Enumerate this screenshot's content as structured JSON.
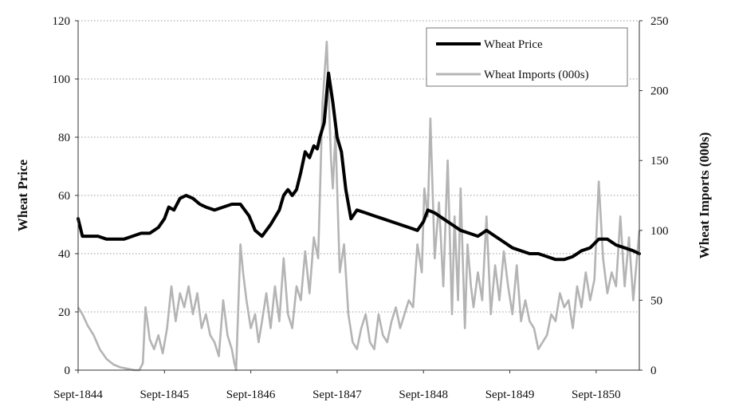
{
  "chart_data": {
    "type": "line",
    "title": "",
    "xlabel": "",
    "ylabel": "Wheat Price",
    "y2label": "Wheat Imports (000s)",
    "ylim": [
      0,
      120
    ],
    "y2lim": [
      0,
      250
    ],
    "yticks": [
      "0",
      "20",
      "40",
      "60",
      "80",
      "100",
      "120"
    ],
    "y2ticks": [
      "0",
      "50",
      "100",
      "150",
      "200",
      "250"
    ],
    "x_range": [
      1844.67,
      1851.17
    ],
    "xticks": [
      {
        "x": 1844.67,
        "label": "Sept-1844"
      },
      {
        "x": 1845.67,
        "label": "Sept-1845"
      },
      {
        "x": 1846.67,
        "label": "Sept-1846"
      },
      {
        "x": 1847.67,
        "label": "Sept-1847"
      },
      {
        "x": 1848.67,
        "label": "Sept-1848"
      },
      {
        "x": 1849.67,
        "label": "Sept-1849"
      },
      {
        "x": 1850.67,
        "label": "Sept-1850"
      }
    ],
    "grid": true,
    "legend": "top-right",
    "series": [
      {
        "name": "Wheat Price",
        "axis": "left",
        "color": "#000000",
        "x": [
          1844.67,
          1844.72,
          1844.8,
          1844.9,
          1845.0,
          1845.1,
          1845.2,
          1845.3,
          1845.4,
          1845.5,
          1845.6,
          1845.67,
          1845.72,
          1845.78,
          1845.85,
          1845.92,
          1846.0,
          1846.08,
          1846.15,
          1846.25,
          1846.35,
          1846.45,
          1846.55,
          1846.6,
          1846.65,
          1846.72,
          1846.8,
          1846.9,
          1847.0,
          1847.05,
          1847.1,
          1847.15,
          1847.2,
          1847.25,
          1847.3,
          1847.35,
          1847.4,
          1847.44,
          1847.47,
          1847.52,
          1847.57,
          1847.62,
          1847.67,
          1847.72,
          1847.77,
          1847.83,
          1847.9,
          1848.0,
          1848.1,
          1848.2,
          1848.3,
          1848.4,
          1848.5,
          1848.6,
          1848.67,
          1848.72,
          1848.8,
          1848.9,
          1849.0,
          1849.1,
          1849.2,
          1849.3,
          1849.4,
          1849.5,
          1849.6,
          1849.7,
          1849.8,
          1849.9,
          1850.0,
          1850.1,
          1850.2,
          1850.3,
          1850.4,
          1850.5,
          1850.6,
          1850.7,
          1850.8,
          1850.9,
          1851.0,
          1851.1,
          1851.17
        ],
        "values": [
          52,
          46,
          46,
          46,
          45,
          45,
          45,
          46,
          47,
          47,
          49,
          52,
          56,
          55,
          59,
          60,
          59,
          57,
          56,
          55,
          56,
          57,
          57,
          55,
          53,
          48,
          46,
          50,
          55,
          60,
          62,
          60,
          62,
          68,
          75,
          73,
          77,
          76,
          80,
          85,
          102,
          92,
          80,
          75,
          62,
          52,
          55,
          54,
          53,
          52,
          51,
          50,
          49,
          48,
          51,
          55,
          54,
          52,
          50,
          48,
          47,
          46,
          48,
          46,
          44,
          42,
          41,
          40,
          40,
          39,
          38,
          38,
          39,
          41,
          42,
          45,
          45,
          43,
          42,
          41,
          40
        ]
      },
      {
        "name": "Wheat Imports (000s)",
        "axis": "right",
        "color": "#b4b4b4",
        "x": [
          1844.67,
          1844.72,
          1844.78,
          1844.85,
          1844.92,
          1845.0,
          1845.08,
          1845.16,
          1845.24,
          1845.32,
          1845.38,
          1845.42,
          1845.45,
          1845.5,
          1845.55,
          1845.6,
          1845.65,
          1845.7,
          1845.75,
          1845.8,
          1845.85,
          1845.9,
          1845.95,
          1846.0,
          1846.05,
          1846.1,
          1846.15,
          1846.2,
          1846.25,
          1846.3,
          1846.35,
          1846.4,
          1846.45,
          1846.48,
          1846.5,
          1846.55,
          1846.58,
          1846.62,
          1846.67,
          1846.72,
          1846.76,
          1846.8,
          1846.85,
          1846.9,
          1846.95,
          1847.0,
          1847.05,
          1847.1,
          1847.15,
          1847.2,
          1847.25,
          1847.3,
          1847.35,
          1847.4,
          1847.45,
          1847.5,
          1847.55,
          1847.6,
          1847.62,
          1847.65,
          1847.7,
          1847.75,
          1847.8,
          1847.85,
          1847.9,
          1847.95,
          1848.0,
          1848.05,
          1848.1,
          1848.15,
          1848.2,
          1848.25,
          1848.3,
          1848.35,
          1848.4,
          1848.45,
          1848.5,
          1848.55,
          1848.6,
          1848.65,
          1848.68,
          1848.72,
          1848.75,
          1848.8,
          1848.85,
          1848.9,
          1848.95,
          1849.0,
          1849.03,
          1849.07,
          1849.1,
          1849.15,
          1849.18,
          1849.22,
          1849.25,
          1849.3,
          1849.35,
          1849.4,
          1849.45,
          1849.5,
          1849.55,
          1849.6,
          1849.65,
          1849.7,
          1849.75,
          1849.8,
          1849.85,
          1849.9,
          1849.95,
          1850.0,
          1850.05,
          1850.1,
          1850.15,
          1850.2,
          1850.25,
          1850.3,
          1850.35,
          1850.4,
          1850.45,
          1850.5,
          1850.55,
          1850.6,
          1850.65,
          1850.7,
          1850.75,
          1850.8,
          1850.85,
          1850.9,
          1850.95,
          1851.0,
          1851.05,
          1851.1,
          1851.17
        ],
        "values": [
          45,
          40,
          32,
          25,
          15,
          8,
          4,
          2,
          1,
          0,
          0,
          5,
          45,
          22,
          15,
          25,
          12,
          30,
          60,
          35,
          55,
          45,
          60,
          40,
          55,
          30,
          40,
          25,
          20,
          10,
          50,
          25,
          15,
          5,
          0,
          90,
          70,
          50,
          30,
          40,
          20,
          35,
          55,
          30,
          60,
          35,
          80,
          40,
          30,
          60,
          50,
          85,
          55,
          95,
          80,
          190,
          235,
          150,
          130,
          170,
          70,
          90,
          40,
          20,
          15,
          30,
          40,
          20,
          15,
          40,
          25,
          20,
          35,
          45,
          30,
          40,
          50,
          45,
          90,
          70,
          130,
          110,
          180,
          80,
          120,
          60,
          150,
          40,
          110,
          50,
          130,
          30,
          90,
          60,
          45,
          70,
          50,
          110,
          40,
          75,
          50,
          85,
          60,
          40,
          75,
          35,
          50,
          35,
          30,
          15,
          20,
          25,
          40,
          35,
          55,
          45,
          50,
          30,
          60,
          45,
          70,
          50,
          65,
          135,
          80,
          55,
          70,
          60,
          110,
          60,
          95,
          50,
          100
        ]
      }
    ]
  }
}
